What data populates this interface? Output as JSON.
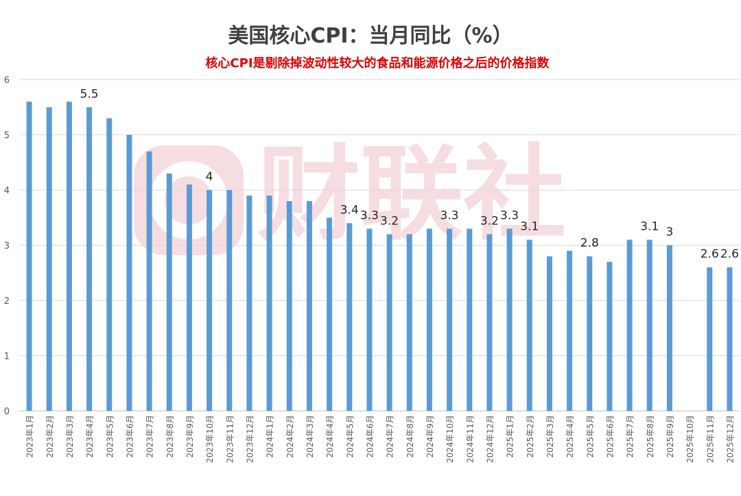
{
  "chart_data": {
    "type": "bar",
    "title": "美国核心CPI：当月同比（%）",
    "subtitle": "核心CPI是剔除掉波动性较大的食品和能源价格之后的价格指数",
    "xlabel": "",
    "ylabel": "",
    "ylim": [
      0,
      6
    ],
    "yticks": [
      "0",
      "1",
      "2",
      "3",
      "4",
      "5",
      "6"
    ],
    "grid": true,
    "legend": "none",
    "categories": [
      "2023年1月",
      "2023年2月",
      "2023年3月",
      "2023年4月",
      "2023年5月",
      "2023年6月",
      "2023年7月",
      "2023年8月",
      "2023年9月",
      "2023年10月",
      "2023年11月",
      "2023年12月",
      "2024年1月",
      "2024年2月",
      "2024年3月",
      "2024年4月",
      "2024年5月",
      "2024年6月",
      "2024年7月",
      "2024年8月",
      "2024年9月",
      "2024年10月",
      "2024年11月",
      "2024年12月",
      "2025年1月",
      "2025年2月",
      "2025年3月",
      "2025年4月",
      "2025年5月",
      "2025年6月",
      "2025年7月",
      "2025年8月",
      "2025年9月",
      "2025年10月",
      "2025年11月",
      "2025年12月"
    ],
    "values": [
      5.6,
      5.5,
      5.6,
      5.5,
      5.3,
      5.0,
      4.7,
      4.3,
      4.1,
      4.0,
      4.0,
      3.9,
      3.9,
      3.8,
      3.8,
      3.5,
      3.4,
      3.3,
      3.2,
      3.2,
      3.3,
      3.3,
      3.3,
      3.2,
      3.3,
      3.1,
      2.8,
      2.9,
      2.8,
      2.7,
      3.1,
      3.1,
      3.0,
      null,
      2.6,
      2.6
    ],
    "data_labels": [
      {
        "category": "2023年4月",
        "text": "5.5"
      },
      {
        "category": "2023年10月",
        "text": "4"
      },
      {
        "category": "2024年5月",
        "text": "3.4"
      },
      {
        "category": "2024年6月",
        "text": "3.3"
      },
      {
        "category": "2024年7月",
        "text": "3.2"
      },
      {
        "category": "2024年10月",
        "text": "3.3"
      },
      {
        "category": "2024年12月",
        "text": "3.2"
      },
      {
        "category": "2025年1月",
        "text": "3.3"
      },
      {
        "category": "2025年2月",
        "text": "3.1"
      },
      {
        "category": "2025年5月",
        "text": "2.8"
      },
      {
        "category": "2025年8月",
        "text": "3.1"
      },
      {
        "category": "2025年9月",
        "text": "3"
      },
      {
        "category": "2025年11月",
        "text": "2.6"
      },
      {
        "category": "2025年12月",
        "text": "2.6"
      }
    ],
    "colors": {
      "bar": "#5b9bd5",
      "grid": "#d9d9d9",
      "axis": "#bfbfbf",
      "title": "#404040",
      "subtitle": "#e00000",
      "tick_label": "#595959",
      "data_label": "#262626",
      "watermark": "#f6dde1"
    },
    "watermark": "财联社"
  }
}
